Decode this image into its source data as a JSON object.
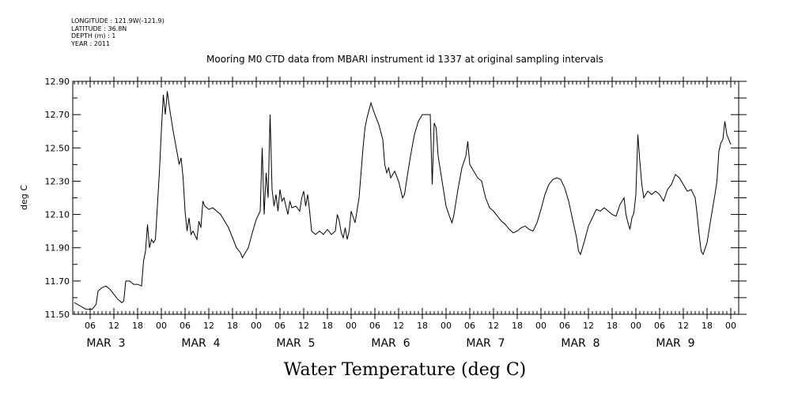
{
  "meta": {
    "longitude": "LONGITUDE : 121.9W(-121.9)",
    "latitude": "LATITUDE : 36.8N",
    "depth": "DEPTH (m) : 1",
    "year": "YEAR : 2011"
  },
  "chart_data": {
    "type": "line",
    "title": "Mooring M0 CTD data from MBARI instrument id 1337 at original sampling intervals",
    "xlabel": "Water Temperature (deg C)",
    "ylabel": "deg C",
    "ylim": [
      11.5,
      12.9
    ],
    "yticks": [
      "11.50",
      "11.70",
      "11.90",
      "12.10",
      "12.30",
      "12.50",
      "12.70",
      "12.90"
    ],
    "xlim_hours": [
      0,
      166
    ],
    "xtick_labels": [
      "06",
      "12",
      "18",
      "00",
      "06",
      "12",
      "18",
      "00",
      "06",
      "12",
      "18",
      "00",
      "06",
      "12",
      "18",
      "00",
      "06",
      "12",
      "18",
      "00",
      "06",
      "12",
      "18",
      "00",
      "06",
      "12",
      "18",
      "00"
    ],
    "date_labels": [
      {
        "month": "MAR",
        "day": "3"
      },
      {
        "month": "MAR",
        "day": "4"
      },
      {
        "month": "MAR",
        "day": "5"
      },
      {
        "month": "MAR",
        "day": "6"
      },
      {
        "month": "MAR",
        "day": "7"
      },
      {
        "month": "MAR",
        "day": "8"
      },
      {
        "month": "MAR",
        "day": "9"
      }
    ],
    "series": [
      {
        "points": [
          [
            0,
            11.57
          ],
          [
            1.5,
            11.55
          ],
          [
            3,
            11.53
          ],
          [
            4.5,
            11.53
          ],
          [
            5.5,
            11.56
          ],
          [
            6,
            11.64
          ],
          [
            7,
            11.66
          ],
          [
            8,
            11.67
          ],
          [
            9,
            11.65
          ],
          [
            10,
            11.62
          ],
          [
            11,
            11.59
          ],
          [
            12,
            11.57
          ],
          [
            12.5,
            11.58
          ],
          [
            13,
            11.7
          ],
          [
            14,
            11.7
          ],
          [
            15,
            11.68
          ],
          [
            16,
            11.68
          ],
          [
            17,
            11.67
          ],
          [
            17.5,
            11.82
          ],
          [
            18,
            11.88
          ],
          [
            18.5,
            12.04
          ],
          [
            19,
            11.9
          ],
          [
            19.5,
            11.95
          ],
          [
            20,
            11.93
          ],
          [
            20.5,
            11.95
          ],
          [
            21,
            12.15
          ],
          [
            21.5,
            12.35
          ],
          [
            22,
            12.6
          ],
          [
            22.5,
            12.82
          ],
          [
            23,
            12.7
          ],
          [
            23.5,
            12.84
          ],
          [
            24,
            12.75
          ],
          [
            25,
            12.6
          ],
          [
            26,
            12.47
          ],
          [
            26.5,
            12.4
          ],
          [
            27,
            12.44
          ],
          [
            27.5,
            12.32
          ],
          [
            28,
            12.12
          ],
          [
            28.5,
            12.0
          ],
          [
            29,
            12.08
          ],
          [
            29.5,
            11.98
          ],
          [
            30,
            12.0
          ],
          [
            31,
            11.95
          ],
          [
            31.5,
            12.06
          ],
          [
            32,
            12.02
          ],
          [
            32.5,
            12.18
          ],
          [
            33,
            12.15
          ],
          [
            34,
            12.13
          ],
          [
            35,
            12.14
          ],
          [
            36,
            12.12
          ],
          [
            37,
            12.1
          ],
          [
            38,
            12.06
          ],
          [
            39,
            12.02
          ],
          [
            40,
            11.96
          ],
          [
            41,
            11.9
          ],
          [
            42,
            11.87
          ],
          [
            42.5,
            11.84
          ],
          [
            43,
            11.86
          ],
          [
            44,
            11.9
          ],
          [
            45,
            11.99
          ],
          [
            46,
            12.07
          ],
          [
            47,
            12.12
          ],
          [
            47.5,
            12.5
          ],
          [
            48,
            12.1
          ],
          [
            48.5,
            12.35
          ],
          [
            49,
            12.2
          ],
          [
            49.5,
            12.7
          ],
          [
            50,
            12.25
          ],
          [
            50.5,
            12.15
          ],
          [
            51,
            12.22
          ],
          [
            51.5,
            12.12
          ],
          [
            52,
            12.25
          ],
          [
            52.5,
            12.18
          ],
          [
            53,
            12.2
          ],
          [
            54,
            12.1
          ],
          [
            54.5,
            12.18
          ],
          [
            55,
            12.14
          ],
          [
            56,
            12.15
          ],
          [
            57,
            12.12
          ],
          [
            57.5,
            12.2
          ],
          [
            58,
            12.24
          ],
          [
            58.5,
            12.15
          ],
          [
            59,
            12.22
          ],
          [
            59.5,
            12.12
          ],
          [
            60,
            12.0
          ],
          [
            61,
            11.98
          ],
          [
            62,
            12.0
          ],
          [
            63,
            11.98
          ],
          [
            64,
            12.01
          ],
          [
            65,
            11.98
          ],
          [
            66,
            12.0
          ],
          [
            66.5,
            12.1
          ],
          [
            67,
            12.06
          ],
          [
            67.5,
            11.99
          ],
          [
            68,
            11.96
          ],
          [
            68.5,
            12.02
          ],
          [
            69,
            11.95
          ],
          [
            69.5,
            12.0
          ],
          [
            70,
            12.12
          ],
          [
            71,
            12.05
          ],
          [
            72,
            12.2
          ],
          [
            73,
            12.5
          ],
          [
            73.5,
            12.62
          ],
          [
            74,
            12.68
          ],
          [
            75,
            12.77
          ],
          [
            76,
            12.7
          ],
          [
            77,
            12.64
          ],
          [
            78,
            12.55
          ],
          [
            78.5,
            12.4
          ],
          [
            79,
            12.35
          ],
          [
            79.5,
            12.38
          ],
          [
            80,
            12.32
          ],
          [
            81,
            12.36
          ],
          [
            82,
            12.3
          ],
          [
            83,
            12.2
          ],
          [
            83.5,
            12.22
          ],
          [
            84,
            12.3
          ],
          [
            85,
            12.45
          ],
          [
            86,
            12.58
          ],
          [
            87,
            12.66
          ],
          [
            88,
            12.7
          ],
          [
            89,
            12.7
          ],
          [
            90,
            12.7
          ],
          [
            90.5,
            12.28
          ],
          [
            91,
            12.65
          ],
          [
            91.5,
            12.62
          ],
          [
            92,
            12.45
          ],
          [
            93,
            12.3
          ],
          [
            94,
            12.15
          ],
          [
            95,
            12.08
          ],
          [
            95.5,
            12.05
          ],
          [
            96,
            12.1
          ],
          [
            97,
            12.25
          ],
          [
            98,
            12.38
          ],
          [
            99,
            12.45
          ],
          [
            99.5,
            12.54
          ],
          [
            100,
            12.4
          ],
          [
            101,
            12.36
          ],
          [
            102,
            12.32
          ],
          [
            103,
            12.3
          ],
          [
            104,
            12.2
          ],
          [
            105,
            12.14
          ],
          [
            106,
            12.12
          ],
          [
            107,
            12.09
          ],
          [
            108,
            12.06
          ],
          [
            109,
            12.04
          ],
          [
            110,
            12.01
          ],
          [
            111,
            11.99
          ],
          [
            112,
            12.0
          ],
          [
            113,
            12.02
          ],
          [
            114,
            12.03
          ],
          [
            115,
            12.01
          ],
          [
            116,
            12.0
          ],
          [
            117,
            12.05
          ],
          [
            118,
            12.13
          ],
          [
            119,
            12.22
          ],
          [
            120,
            12.28
          ],
          [
            121,
            12.31
          ],
          [
            122,
            12.32
          ],
          [
            123,
            12.31
          ],
          [
            124,
            12.26
          ],
          [
            125,
            12.18
          ],
          [
            126,
            12.07
          ],
          [
            127,
            11.96
          ],
          [
            127.5,
            11.88
          ],
          [
            128,
            11.86
          ],
          [
            129,
            11.94
          ],
          [
            130,
            12.03
          ],
          [
            131,
            12.08
          ],
          [
            132,
            12.13
          ],
          [
            133,
            12.12
          ],
          [
            134,
            12.14
          ],
          [
            135,
            12.12
          ],
          [
            136,
            12.1
          ],
          [
            137,
            12.09
          ],
          [
            138,
            12.16
          ],
          [
            139,
            12.2
          ],
          [
            139.5,
            12.1
          ],
          [
            140,
            12.05
          ],
          [
            140.5,
            12.01
          ],
          [
            141,
            12.08
          ],
          [
            141.5,
            12.11
          ],
          [
            142,
            12.22
          ],
          [
            142.5,
            12.58
          ],
          [
            143,
            12.42
          ],
          [
            143.5,
            12.28
          ],
          [
            144,
            12.2
          ],
          [
            145,
            12.24
          ],
          [
            146,
            12.22
          ],
          [
            147,
            12.24
          ],
          [
            148,
            12.22
          ],
          [
            149,
            12.18
          ],
          [
            150,
            12.25
          ],
          [
            151,
            12.28
          ],
          [
            152,
            12.34
          ],
          [
            153,
            12.32
          ],
          [
            154,
            12.28
          ],
          [
            155,
            12.24
          ],
          [
            156,
            12.25
          ],
          [
            157,
            12.2
          ],
          [
            157.5,
            12.1
          ],
          [
            158,
            11.98
          ],
          [
            158.5,
            11.88
          ],
          [
            159,
            11.86
          ],
          [
            160,
            11.93
          ],
          [
            161,
            12.08
          ],
          [
            162,
            12.22
          ],
          [
            162.5,
            12.3
          ],
          [
            163,
            12.48
          ],
          [
            163.5,
            12.53
          ],
          [
            164,
            12.55
          ],
          [
            164.5,
            12.66
          ],
          [
            165,
            12.58
          ],
          [
            165.5,
            12.55
          ],
          [
            166,
            12.52
          ]
        ]
      }
    ],
    "grid": false
  }
}
